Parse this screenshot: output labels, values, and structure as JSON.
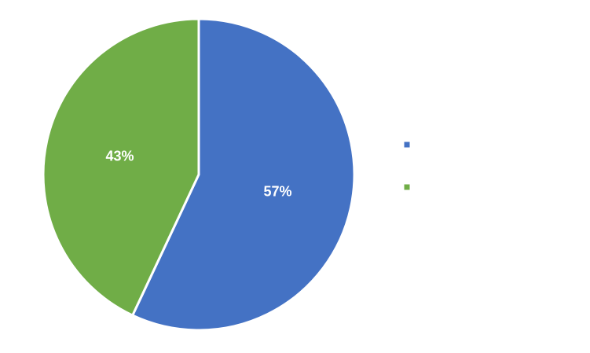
{
  "chart_data": {
    "type": "pie",
    "slices": [
      {
        "label": "",
        "value": 57,
        "display": "57%",
        "color": "#4472C4"
      },
      {
        "label": "",
        "value": 43,
        "display": "43%",
        "color": "#70AD47"
      }
    ],
    "legend_placement": "right",
    "label_color": "#ffffff"
  }
}
